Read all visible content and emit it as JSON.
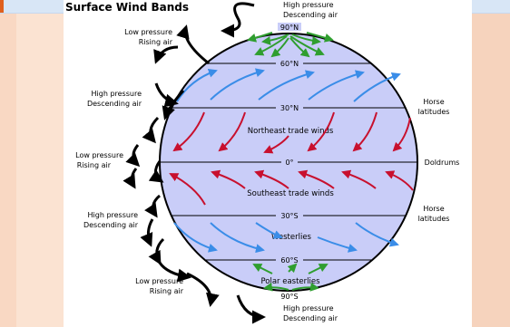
{
  "title": "Surface Wind Bands",
  "latitudes": {
    "n90": "90°N",
    "n60": "60°N",
    "n30": "30°N",
    "eq": "0°",
    "s30": "30°S",
    "s60": "60°S",
    "s90": "90°S"
  },
  "winds": {
    "ne_trade": "Northeast trade winds",
    "se_trade": "Southeast trade winds",
    "westerlies": "Westerlies",
    "polar": "Polar easterlies"
  },
  "left_labels": [
    {
      "line1": "Low pressure",
      "line2": "Rising air"
    },
    {
      "line1": "High pressure",
      "line2": "Descending air"
    },
    {
      "line1": "Low pressure",
      "line2": "Rising air"
    },
    {
      "line1": "High pressure",
      "line2": "Descending air"
    },
    {
      "line1": "Low pressure",
      "line2": "Rising air"
    }
  ],
  "top_label": {
    "line1": "High pressure",
    "line2": "Descending air"
  },
  "bottom_label": {
    "line1": "High pressure",
    "line2": "Descending air"
  },
  "right_labels": [
    {
      "line1": "Horse",
      "line2": "latitudes"
    },
    {
      "line1": "Doldrums",
      "line2": ""
    },
    {
      "line1": "Horse",
      "line2": "latitudes"
    }
  ],
  "colors": {
    "globe": "#c9cdf8",
    "blue_arrow": "#3a8de8",
    "red_arrow": "#c8102e",
    "green_arrow": "#2f9e2f",
    "black_arrow": "#000000"
  }
}
